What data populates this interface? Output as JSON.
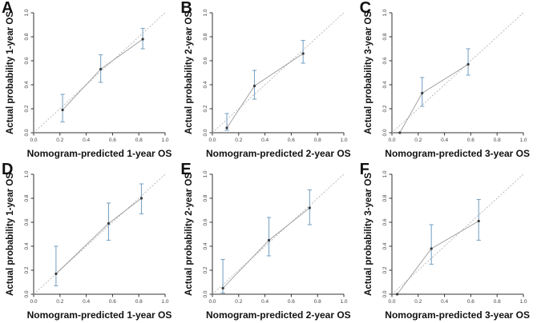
{
  "figure": {
    "background": "#ffffff",
    "tick_labels": [
      "0.0",
      "0.2",
      "0.4",
      "0.6",
      "0.8",
      "1.0"
    ],
    "colors": {
      "axis": "#333333",
      "tick_text": "#444444",
      "title_text": "#111111",
      "reference_diagonal": "#b5b5b5",
      "calibration_line": "#9b9b9b",
      "error_bar": "#7ca6c7",
      "data_point": "#3a3a3a"
    }
  },
  "chart_data": [
    {
      "id": "A",
      "type": "scatter",
      "xlabel": "Nomogram-predicted 1-year OS",
      "ylabel": "Actual probability 1-year OS",
      "xlim": [
        0,
        1
      ],
      "ylim": [
        0,
        1
      ],
      "xticks": [
        0,
        0.2,
        0.4,
        0.6,
        0.8,
        1.0
      ],
      "yticks": [
        0,
        0.2,
        0.4,
        0.6,
        0.8,
        1.0
      ],
      "diagonal_reference": true,
      "points": [
        {
          "x": 0.22,
          "y": 0.19,
          "ci_low": 0.09,
          "ci_high": 0.32
        },
        {
          "x": 0.51,
          "y": 0.53,
          "ci_low": 0.42,
          "ci_high": 0.65
        },
        {
          "x": 0.83,
          "y": 0.78,
          "ci_low": 0.7,
          "ci_high": 0.87
        }
      ]
    },
    {
      "id": "B",
      "type": "scatter",
      "xlabel": "Nomogram-predicted 2-year OS",
      "ylabel": "Actual probability 2-year OS",
      "xlim": [
        0,
        1
      ],
      "ylim": [
        0,
        1
      ],
      "xticks": [
        0,
        0.2,
        0.4,
        0.6,
        0.8,
        1.0
      ],
      "yticks": [
        0,
        0.2,
        0.4,
        0.6,
        0.8,
        1.0
      ],
      "diagonal_reference": true,
      "points": [
        {
          "x": 0.11,
          "y": 0.04,
          "ci_low": 0.02,
          "ci_high": 0.16
        },
        {
          "x": 0.32,
          "y": 0.39,
          "ci_low": 0.28,
          "ci_high": 0.52
        },
        {
          "x": 0.69,
          "y": 0.66,
          "ci_low": 0.58,
          "ci_high": 0.77
        }
      ]
    },
    {
      "id": "C",
      "type": "scatter",
      "xlabel": "Nomogram-predicted 3-year OS",
      "ylabel": "Actual probability 3-year OS",
      "xlim": [
        0,
        1
      ],
      "ylim": [
        0,
        1
      ],
      "xticks": [
        0,
        0.2,
        0.4,
        0.6,
        0.8,
        1.0
      ],
      "yticks": [
        0,
        0.2,
        0.4,
        0.6,
        0.8,
        1.0
      ],
      "diagonal_reference": true,
      "points": [
        {
          "x": 0.06,
          "y": 0.0
        },
        {
          "x": 0.23,
          "y": 0.33,
          "ci_low": 0.22,
          "ci_high": 0.46
        },
        {
          "x": 0.58,
          "y": 0.57,
          "ci_low": 0.48,
          "ci_high": 0.7
        }
      ]
    },
    {
      "id": "D",
      "type": "scatter",
      "xlabel": "Nomogram-predicted 1-year OS",
      "ylabel": "Actual probability 1-year OS",
      "xlim": [
        0,
        1
      ],
      "ylim": [
        0,
        1
      ],
      "xticks": [
        0,
        0.2,
        0.4,
        0.6,
        0.8,
        1.0
      ],
      "yticks": [
        0,
        0.2,
        0.4,
        0.6,
        0.8,
        1.0
      ],
      "diagonal_reference": true,
      "points": [
        {
          "x": 0.17,
          "y": 0.17,
          "ci_low": 0.07,
          "ci_high": 0.4
        },
        {
          "x": 0.57,
          "y": 0.59,
          "ci_low": 0.45,
          "ci_high": 0.76
        },
        {
          "x": 0.82,
          "y": 0.8,
          "ci_low": 0.67,
          "ci_high": 0.92
        }
      ]
    },
    {
      "id": "E",
      "type": "scatter",
      "xlabel": "Nomogram-predicted 2-year OS",
      "ylabel": "Actual probability 2-year OS",
      "xlim": [
        0,
        1
      ],
      "ylim": [
        0,
        1
      ],
      "xticks": [
        0,
        0.2,
        0.4,
        0.6,
        0.8,
        1.0
      ],
      "yticks": [
        0,
        0.2,
        0.4,
        0.6,
        0.8,
        1.0
      ],
      "diagonal_reference": true,
      "points": [
        {
          "x": 0.08,
          "y": 0.05,
          "ci_low": 0.01,
          "ci_high": 0.29
        },
        {
          "x": 0.43,
          "y": 0.45,
          "ci_low": 0.32,
          "ci_high": 0.64
        },
        {
          "x": 0.74,
          "y": 0.72,
          "ci_low": 0.58,
          "ci_high": 0.87
        }
      ]
    },
    {
      "id": "F",
      "type": "scatter",
      "xlabel": "Nomogram-predicted 3-year OS",
      "ylabel": "Actual probability 3-year OS",
      "xlim": [
        0,
        1
      ],
      "ylim": [
        0,
        1
      ],
      "xticks": [
        0,
        0.2,
        0.4,
        0.6,
        0.8,
        1.0
      ],
      "yticks": [
        0,
        0.2,
        0.4,
        0.6,
        0.8,
        1.0
      ],
      "diagonal_reference": true,
      "points": [
        {
          "x": 0.04,
          "y": 0.0
        },
        {
          "x": 0.3,
          "y": 0.38,
          "ci_low": 0.25,
          "ci_high": 0.58
        },
        {
          "x": 0.66,
          "y": 0.61,
          "ci_low": 0.45,
          "ci_high": 0.79
        }
      ]
    }
  ]
}
